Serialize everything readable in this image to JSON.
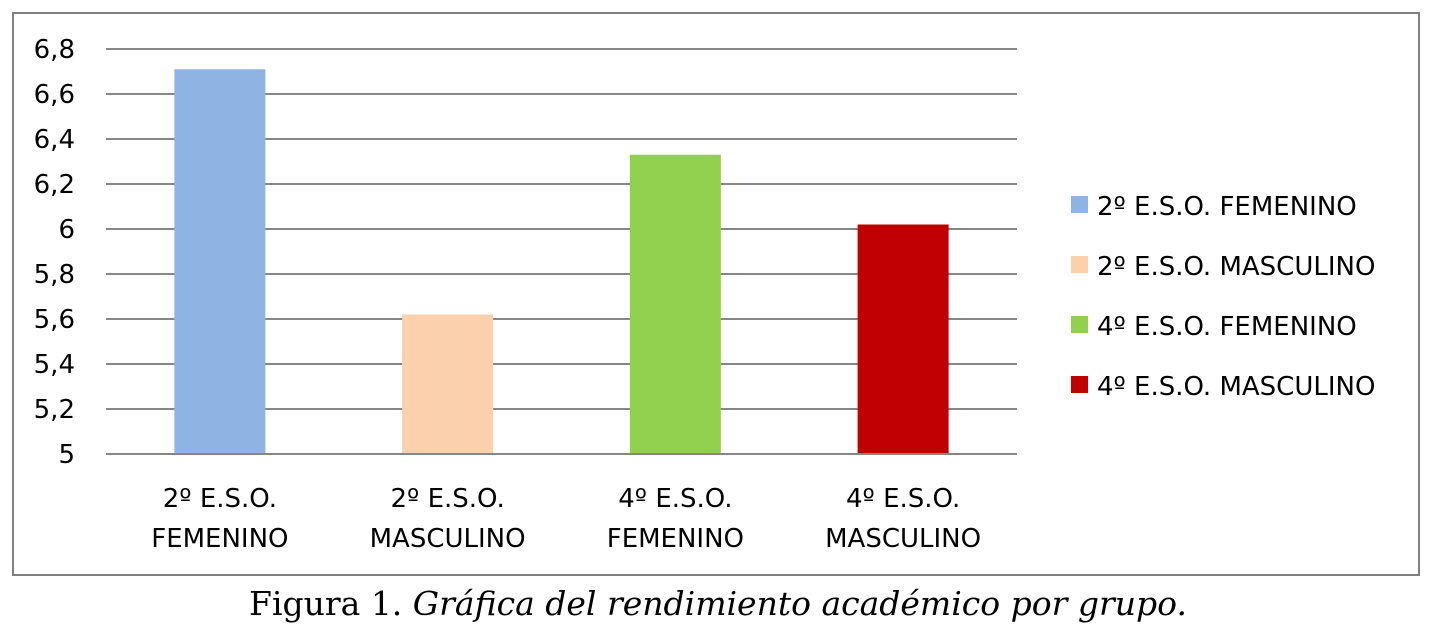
{
  "chart_data": {
    "type": "bar",
    "categories": [
      [
        "2º E.S.O.",
        "FEMENINO"
      ],
      [
        "2º E.S.O.",
        "MASCULINO"
      ],
      [
        "4º E.S.O.",
        "FEMENINO"
      ],
      [
        "4º E.S.O.",
        "MASCULINO"
      ]
    ],
    "values": [
      6.71,
      5.62,
      6.33,
      6.02
    ],
    "colors": [
      "#8eb4e3",
      "#fad0ad",
      "#92d050",
      "#c00000"
    ],
    "legend": [
      "2º E.S.O. FEMENINO",
      "2º E.S.O. MASCULINO",
      "4º E.S.O. FEMENINO",
      "4º E.S.O. MASCULINO"
    ],
    "legend_position": "right",
    "ylim": [
      5,
      6.8
    ],
    "yticks": [
      5,
      5.2,
      5.4,
      5.6,
      5.8,
      6,
      6.2,
      6.4,
      6.6,
      6.8
    ],
    "ytick_labels": [
      "5",
      "5,2",
      "5,4",
      "5,6",
      "5,8",
      "6",
      "6,2",
      "6,4",
      "6,6",
      "6,8"
    ],
    "grid": true,
    "gridline_color": "#868686"
  },
  "caption": {
    "prefix": "Figura 1. ",
    "text": "Gráfica del rendimiento académico por grupo."
  }
}
